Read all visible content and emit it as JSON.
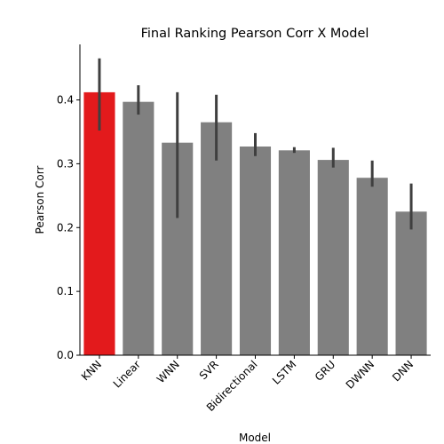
{
  "chart_data": {
    "type": "bar",
    "title": "Final Ranking Pearson Corr X Model",
    "xlabel": "Model",
    "ylabel": "Pearson Corr",
    "ylim": [
      0,
      0.487
    ],
    "yticks": [
      "0.0",
      "0.1",
      "0.2",
      "0.3",
      "0.4"
    ],
    "categories": [
      "KNN",
      "Linear",
      "WNN",
      "SVR",
      "Bidirectional",
      "LSTM",
      "GRU",
      "DWNN",
      "DNN"
    ],
    "values": [
      0.412,
      0.397,
      0.333,
      0.365,
      0.327,
      0.321,
      0.306,
      0.278,
      0.225
    ],
    "error_low": [
      0.352,
      0.377,
      0.215,
      0.305,
      0.312,
      0.317,
      0.294,
      0.264,
      0.197
    ],
    "error_high": [
      0.465,
      0.423,
      0.412,
      0.408,
      0.348,
      0.326,
      0.325,
      0.305,
      0.269
    ],
    "highlight_index": 0,
    "colors": {
      "highlight": "#e31a1c",
      "bar": "#808080",
      "error_bar": "#3f3f3f",
      "axis": "#000000"
    },
    "grid": false,
    "legend": "none"
  }
}
